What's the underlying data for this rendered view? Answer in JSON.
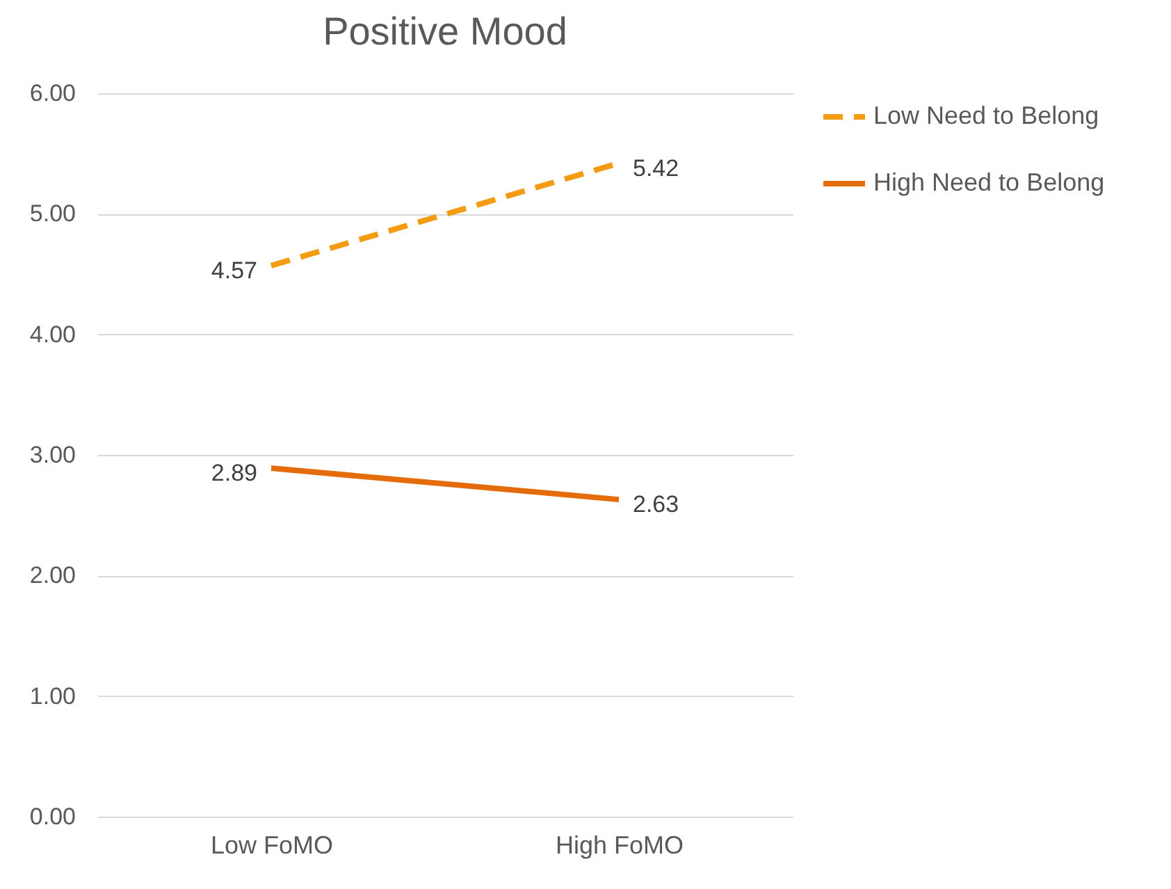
{
  "chart_data": {
    "type": "line",
    "title": "Positive Mood",
    "categories": [
      "Low FoMO",
      "High FoMO"
    ],
    "series": [
      {
        "name": "Low Need to Belong",
        "color": "#f39c12",
        "values": [
          4.57,
          5.42
        ],
        "line_style": "dashed"
      },
      {
        "name": "High Need to Belong",
        "color": "#e46c0a",
        "values": [
          2.89,
          2.63
        ],
        "line_style": "solid"
      }
    ],
    "ylim": [
      0,
      6
    ],
    "yticks": [
      {
        "value": 0,
        "label": "0.00"
      },
      {
        "value": 1,
        "label": "1.00"
      },
      {
        "value": 2,
        "label": "2.00"
      },
      {
        "value": 3,
        "label": "3.00"
      },
      {
        "value": 4,
        "label": "4.00"
      },
      {
        "value": 5,
        "label": "5.00"
      },
      {
        "value": 6,
        "label": "6.00"
      }
    ],
    "grid": "y",
    "legend": "right",
    "data_labels": true,
    "marker": "none"
  }
}
